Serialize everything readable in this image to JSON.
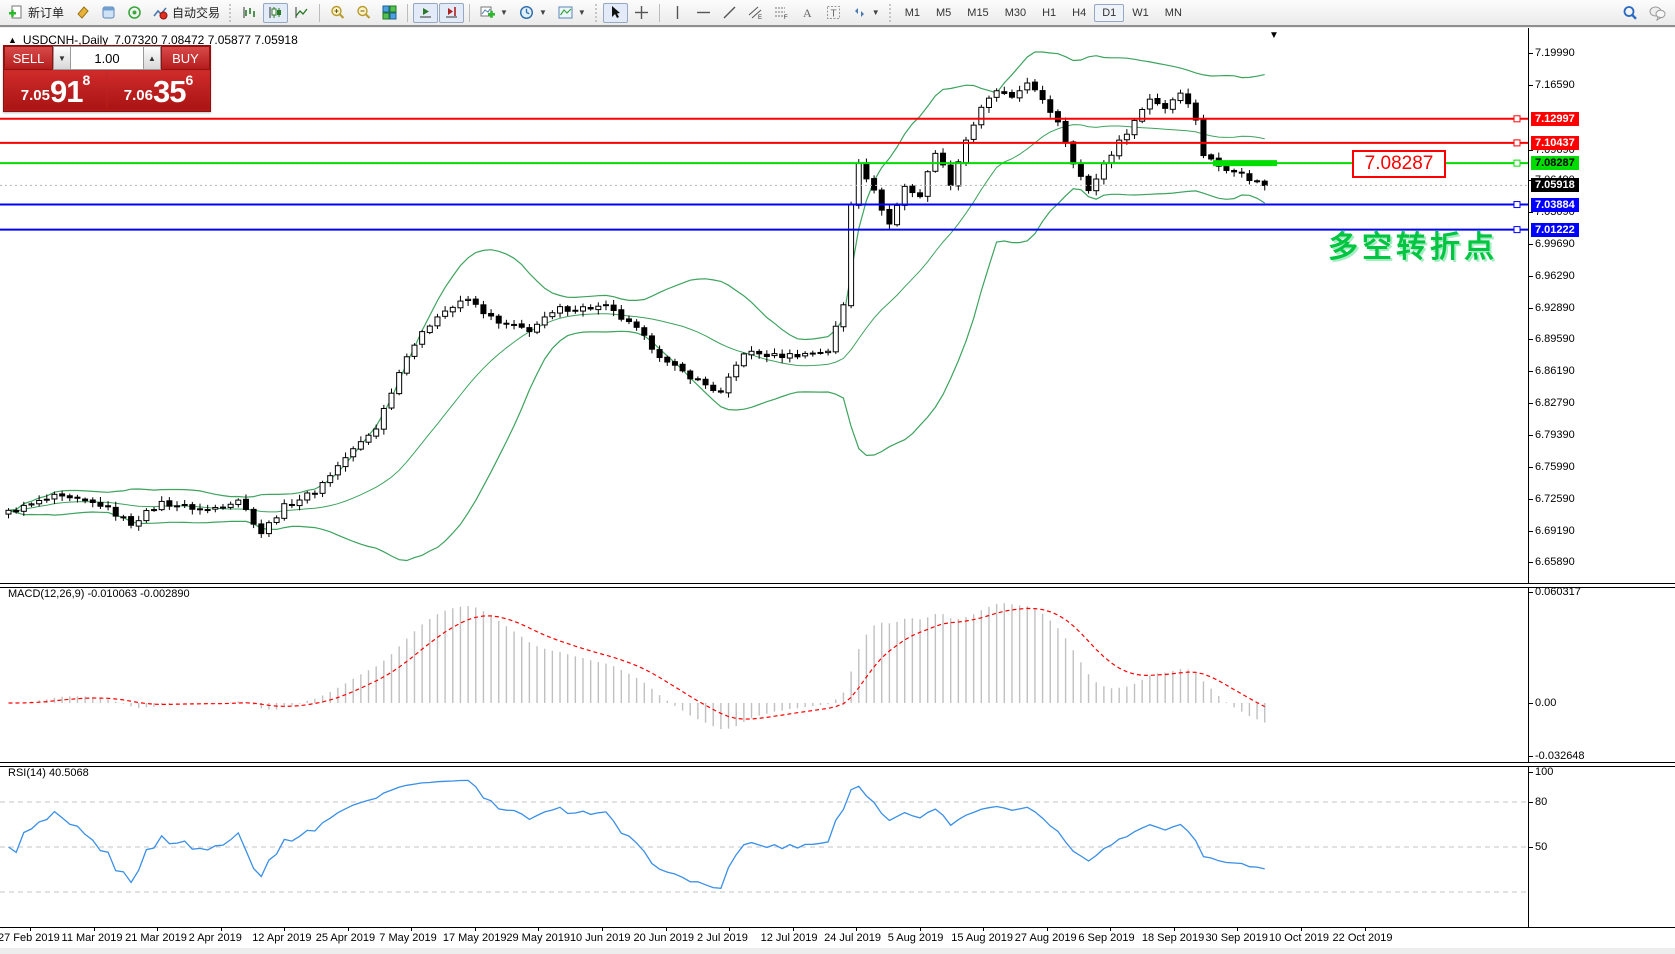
{
  "toolbar": {
    "new_order_label": "新订单",
    "autotrade_label": "自动交易",
    "timeframes": [
      "M1",
      "M5",
      "M15",
      "M30",
      "H1",
      "H4",
      "D1",
      "W1",
      "MN"
    ],
    "active_timeframe": "D1"
  },
  "chart": {
    "collapse_arrow": "▲",
    "title": "USDCNH-,Daily",
    "ohlc_text": "7.07320 7.08472 7.05877 7.05918",
    "menu_arrow": "▼",
    "trade_panel": {
      "sell_label": "SELL",
      "buy_label": "BUY",
      "volume": "1.00",
      "spin_down": "▼",
      "spin_up": "▲",
      "sell_price_prefix": "7.05",
      "sell_price_big": "91",
      "sell_price_sup": "8",
      "buy_price_prefix": "7.06",
      "buy_price_big": "35",
      "buy_price_sup": "6"
    },
    "callout_text": "7.08287",
    "annotation_text": "多空转折点"
  },
  "indicators": {
    "macd_label": "MACD(12,26,9) -0.010063 -0.002890",
    "rsi_label": "RSI(14) 40.5068"
  },
  "chart_data": {
    "type": "candlestick",
    "symbol": "USDCNH-",
    "period": "Daily",
    "ohlc_display": {
      "open": "7.07320",
      "high": "7.08472",
      "low": "7.05877",
      "close": "7.05918"
    },
    "price_axis_ticks": [
      7.1999,
      7.1659,
      7.0969,
      7.0649,
      7.0309,
      6.9969,
      6.9629,
      6.9289,
      6.8959,
      6.8619,
      6.8279,
      6.7939,
      6.7599,
      6.7259,
      6.6919,
      6.6589
    ],
    "levels": [
      {
        "price": 7.12997,
        "label": "7.12997",
        "color": "#ff0000",
        "text": "#ffffff",
        "style": "solid",
        "width": 2
      },
      {
        "price": 7.10437,
        "label": "7.10437",
        "color": "#ff0000",
        "text": "#ffffff",
        "style": "solid",
        "width": 2
      },
      {
        "price": 7.08287,
        "label": "7.08287",
        "color": "#00dd00",
        "text": "#000000",
        "style": "solid",
        "width": 2,
        "highlight_segment": [
          1213,
          1277
        ]
      },
      {
        "price": 7.05918,
        "label": "7.05918",
        "color": "#000000",
        "text": "#ffffff",
        "style": "dotted",
        "width": 1,
        "line_color": "#b4b4b4",
        "current": true
      },
      {
        "price": 7.03884,
        "label": "7.03884",
        "color": "#0000ff",
        "text": "#ffffff",
        "style": "solid",
        "width": 2
      },
      {
        "price": 7.01222,
        "label": "7.01222",
        "color": "#0000ff",
        "text": "#ffffff",
        "style": "solid",
        "width": 2
      }
    ],
    "num_candles": 165,
    "price_anchors": [
      [
        0,
        6.712
      ],
      [
        6,
        6.728
      ],
      [
        12,
        6.72
      ],
      [
        16,
        6.7
      ],
      [
        20,
        6.722
      ],
      [
        26,
        6.714
      ],
      [
        30,
        6.726
      ],
      [
        33,
        6.69
      ],
      [
        36,
        6.718
      ],
      [
        40,
        6.734
      ],
      [
        44,
        6.77
      ],
      [
        48,
        6.802
      ],
      [
        52,
        6.88
      ],
      [
        56,
        6.922
      ],
      [
        60,
        6.938
      ],
      [
        64,
        6.912
      ],
      [
        68,
        6.906
      ],
      [
        72,
        6.928
      ],
      [
        78,
        6.93
      ],
      [
        82,
        6.906
      ],
      [
        86,
        6.87
      ],
      [
        90,
        6.852
      ],
      [
        93,
        6.838
      ],
      [
        96,
        6.882
      ],
      [
        100,
        6.878
      ],
      [
        104,
        6.88
      ],
      [
        107,
        6.884
      ],
      [
        109,
        6.932
      ],
      [
        110,
        7.04
      ],
      [
        111,
        7.085
      ],
      [
        113,
        7.052
      ],
      [
        115,
        7.018
      ],
      [
        117,
        7.058
      ],
      [
        119,
        7.048
      ],
      [
        121,
        7.096
      ],
      [
        123,
        7.062
      ],
      [
        125,
        7.108
      ],
      [
        127,
        7.14
      ],
      [
        129,
        7.16
      ],
      [
        131,
        7.15
      ],
      [
        133,
        7.17
      ],
      [
        135,
        7.148
      ],
      [
        137,
        7.128
      ],
      [
        139,
        7.085
      ],
      [
        141,
        7.052
      ],
      [
        143,
        7.082
      ],
      [
        145,
        7.105
      ],
      [
        147,
        7.128
      ],
      [
        149,
        7.152
      ],
      [
        151,
        7.142
      ],
      [
        153,
        7.16
      ],
      [
        155,
        7.13
      ],
      [
        156,
        7.092
      ],
      [
        158,
        7.08
      ],
      [
        160,
        7.076
      ],
      [
        162,
        7.066
      ],
      [
        164,
        7.059
      ]
    ],
    "last_close": 7.05918,
    "bollinger": {
      "period": 20,
      "deviation": 2,
      "color": "#3da35e"
    },
    "candle_colors": {
      "bull_fill": "#ffffff",
      "bear_fill": "#000000",
      "outline": "#000000"
    },
    "macd": {
      "params": "12,26,9",
      "current_values": [
        -0.010063,
        -0.00289
      ],
      "axis_ticks": [
        0.060317,
        0.0,
        -0.032648
      ],
      "hist_color": "#c0c0c0",
      "signal_color": "#ff0000"
    },
    "rsi": {
      "period": 14,
      "current_value": 40.5068,
      "axis_ticks": [
        100,
        80,
        50
      ],
      "dashed_levels": [
        80,
        50,
        20
      ],
      "line_color": "#3a8fe8"
    },
    "x_dates": [
      "27 Feb 2019",
      "11 Mar 2019",
      "21 Mar 2019",
      "2 Apr 2019",
      "12 Apr 2019",
      "25 Apr 2019",
      "7 May 2019",
      "17 May 2019",
      "29 May 2019",
      "10 Jun 2019",
      "20 Jun 2019",
      "2 Jul 2019",
      "12 Jul 2019",
      "24 Jul 2019",
      "5 Aug 2019",
      "15 Aug 2019",
      "27 Aug 2019",
      "6 Sep 2019",
      "18 Sep 2019",
      "30 Sep 2019",
      "10 Oct 2019",
      "22 Oct 2019"
    ]
  }
}
